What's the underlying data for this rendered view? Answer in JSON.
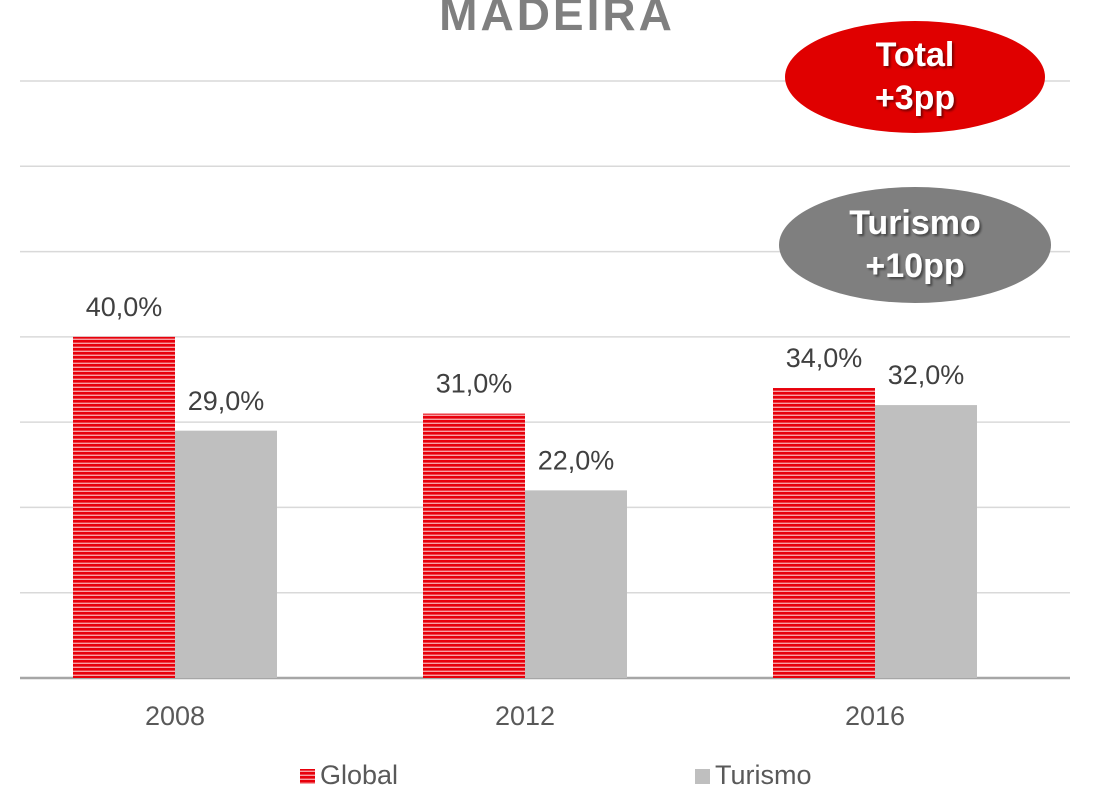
{
  "chart_data": {
    "type": "bar",
    "title": "MADEIRA",
    "categories": [
      "2008",
      "2012",
      "2016"
    ],
    "series": [
      {
        "name": "Global",
        "color": "#e8000b",
        "values": [
          40,
          31,
          34
        ],
        "value_labels": [
          "40,0%",
          "31,0%",
          "34,0%"
        ]
      },
      {
        "name": "Turismo",
        "color": "#bfbfbf",
        "values": [
          29,
          22,
          32
        ],
        "value_labels": [
          "29,0%",
          "22,0%",
          "32,0%"
        ]
      }
    ],
    "ylim": [
      0,
      70
    ],
    "yticks": [
      0,
      10,
      20,
      30,
      40,
      50,
      60,
      70
    ],
    "grid": true,
    "annotations": [
      {
        "lines": [
          "Total",
          "+3pp"
        ],
        "color": "#e00000"
      },
      {
        "lines": [
          "Turismo",
          "+10pp"
        ],
        "color": "#7f7f7f"
      }
    ]
  }
}
